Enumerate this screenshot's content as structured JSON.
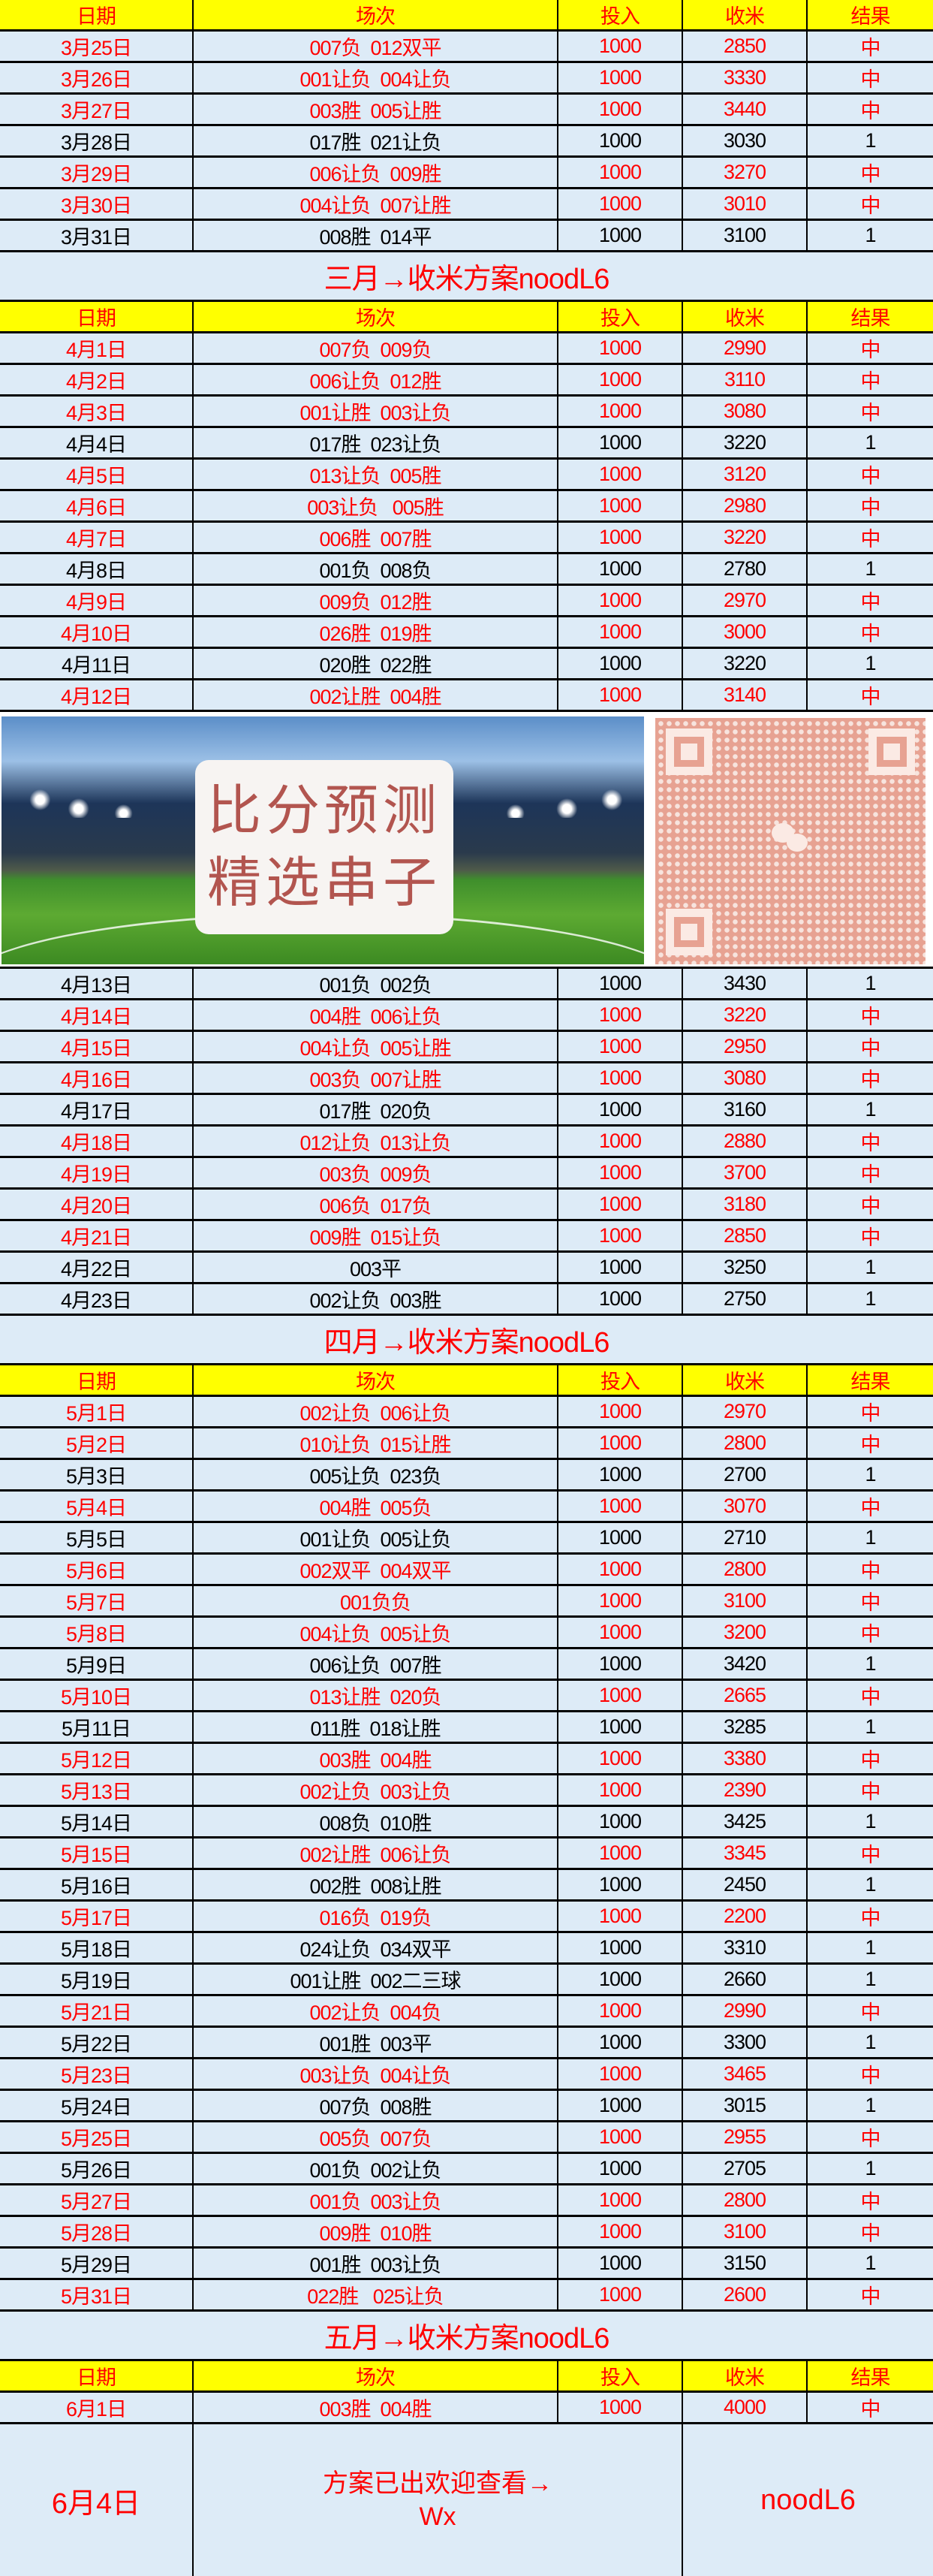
{
  "header": {
    "date": "日期",
    "match": "场次",
    "invest": "投入",
    "income": "收米",
    "result": "结果"
  },
  "colors": {
    "header_bg": "#ffff00",
    "row_bg": "#ddebf7",
    "hit": "#ff0000",
    "normal": "#000000"
  },
  "sections": [
    {
      "rows": [
        [
          "3月25日",
          "007负  012双平",
          "1000",
          "2850",
          "中"
        ],
        [
          "3月26日",
          "001让负  004让负",
          "1000",
          "3330",
          "中"
        ],
        [
          "3月27日",
          "003胜  005让胜",
          "1000",
          "3440",
          "中"
        ],
        [
          "3月28日",
          "017胜  021让负",
          "1000",
          "3030",
          "1"
        ],
        [
          "3月29日",
          "006让负  009胜",
          "1000",
          "3270",
          "中"
        ],
        [
          "3月30日",
          "004让负  007让胜",
          "1000",
          "3010",
          "中"
        ],
        [
          "3月31日",
          "008胜  014平",
          "1000",
          "3100",
          "1"
        ]
      ],
      "summary": "三月→收米方案noodL6"
    },
    {
      "rows": [
        [
          "4月1日",
          "007负  009负",
          "1000",
          "2990",
          "中"
        ],
        [
          "4月2日",
          "006让负  012胜",
          "1000",
          "3110",
          "中"
        ],
        [
          "4月3日",
          "001让胜  003让负",
          "1000",
          "3080",
          "中"
        ],
        [
          "4月4日",
          "017胜  023让负",
          "1000",
          "3220",
          "1"
        ],
        [
          "4月5日",
          "013让负  005胜",
          "1000",
          "3120",
          "中"
        ],
        [
          "4月6日",
          "003让负   005胜",
          "1000",
          "2980",
          "中"
        ],
        [
          "4月7日",
          "006胜  007胜",
          "1000",
          "3220",
          "中"
        ],
        [
          "4月8日",
          "001负  008负",
          "1000",
          "2780",
          "1"
        ],
        [
          "4月9日",
          "009负  012胜",
          "1000",
          "2970",
          "中"
        ],
        [
          "4月10日",
          "026胜  019胜",
          "1000",
          "3000",
          "中"
        ],
        [
          "4月11日",
          "020胜  022胜",
          "1000",
          "3220",
          "1"
        ],
        [
          "4月12日",
          "002让胜  004胜",
          "1000",
          "3140",
          "中"
        ]
      ],
      "banner": {
        "text_line1": "比分预测",
        "text_line2": "精选串子",
        "qr_icon": "wechat-qr-code"
      },
      "rows_after": [
        [
          "4月13日",
          "001负  002负",
          "1000",
          "3430",
          "1"
        ],
        [
          "4月14日",
          "004胜  006让负",
          "1000",
          "3220",
          "中"
        ],
        [
          "4月15日",
          "004让负  005让胜",
          "1000",
          "2950",
          "中"
        ],
        [
          "4月16日",
          "003负  007让胜",
          "1000",
          "3080",
          "中"
        ],
        [
          "4月17日",
          "017胜  020负",
          "1000",
          "3160",
          "1"
        ],
        [
          "4月18日",
          "012让负  013让负",
          "1000",
          "2880",
          "中"
        ],
        [
          "4月19日",
          "003负  009负",
          "1000",
          "3700",
          "中"
        ],
        [
          "4月20日",
          "006负  017负",
          "1000",
          "3180",
          "中"
        ],
        [
          "4月21日",
          "009胜  015让负",
          "1000",
          "2850",
          "中"
        ],
        [
          "4月22日",
          "003平",
          "1000",
          "3250",
          "1"
        ],
        [
          "4月23日",
          "002让负  003胜",
          "1000",
          "2750",
          "1"
        ]
      ],
      "summary": "四月→收米方案noodL6"
    },
    {
      "rows": [
        [
          "5月1日",
          "002让负  006让负",
          "1000",
          "2970",
          "中"
        ],
        [
          "5月2日",
          "010让负  015让胜",
          "1000",
          "2800",
          "中"
        ],
        [
          "5月3日",
          "005让负  023负",
          "1000",
          "2700",
          "1"
        ],
        [
          "5月4日",
          "004胜  005负",
          "1000",
          "3070",
          "中"
        ],
        [
          "5月5日",
          "001让负  005让负",
          "1000",
          "2710",
          "1"
        ],
        [
          "5月6日",
          "002双平  004双平",
          "1000",
          "2800",
          "中"
        ],
        [
          "5月7日",
          "001负负",
          "1000",
          "3100",
          "中"
        ],
        [
          "5月8日",
          "004让负  005让负",
          "1000",
          "3200",
          "中"
        ],
        [
          "5月9日",
          "006让负  007胜",
          "1000",
          "3420",
          "1"
        ],
        [
          "5月10日",
          "013让胜  020负",
          "1000",
          "2665",
          "中"
        ],
        [
          "5月11日",
          "011胜  018让胜",
          "1000",
          "3285",
          "1"
        ],
        [
          "5月12日",
          "003胜  004胜",
          "1000",
          "3380",
          "中"
        ],
        [
          "5月13日",
          "002让负  003让负",
          "1000",
          "2390",
          "中"
        ],
        [
          "5月14日",
          "008负  010胜",
          "1000",
          "3425",
          "1"
        ],
        [
          "5月15日",
          "002让胜  006让负",
          "1000",
          "3345",
          "中"
        ],
        [
          "5月16日",
          "002胜  008让胜",
          "1000",
          "2450",
          "1"
        ],
        [
          "5月17日",
          "016负  019负",
          "1000",
          "2200",
          "中"
        ],
        [
          "5月18日",
          "024让负  034双平",
          "1000",
          "3310",
          "1"
        ],
        [
          "5月19日",
          "001让胜  002二三球",
          "1000",
          "2660",
          "1"
        ],
        [
          "5月21日",
          "002让负  004负",
          "1000",
          "2990",
          "中"
        ],
        [
          "5月22日",
          "001胜  003平",
          "1000",
          "3300",
          "1"
        ],
        [
          "5月23日",
          "003让负  004让负",
          "1000",
          "3465",
          "中"
        ],
        [
          "5月24日",
          "007负  008胜",
          "1000",
          "3015",
          "1"
        ],
        [
          "5月25日",
          "005负  007负",
          "1000",
          "2955",
          "中"
        ],
        [
          "5月26日",
          "001负  002让负",
          "1000",
          "2705",
          "1"
        ],
        [
          "5月27日",
          "001负  003让负",
          "1000",
          "2800",
          "中"
        ],
        [
          "5月28日",
          "009胜  010胜",
          "1000",
          "3100",
          "中"
        ],
        [
          "5月29日",
          "001胜  003让负",
          "1000",
          "3150",
          "1"
        ],
        [
          "5月31日",
          "022胜   025让负",
          "1000",
          "2600",
          "中"
        ]
      ],
      "summary": "五月→收米方案noodL6"
    },
    {
      "rows": [
        [
          "6月1日",
          "003胜  004胜",
          "1000",
          "4000",
          "中"
        ]
      ]
    }
  ],
  "final": {
    "date": "6月4日",
    "message_line1": "方案已出欢迎查看→",
    "message_line2": "Wx",
    "code": "noodL6"
  }
}
